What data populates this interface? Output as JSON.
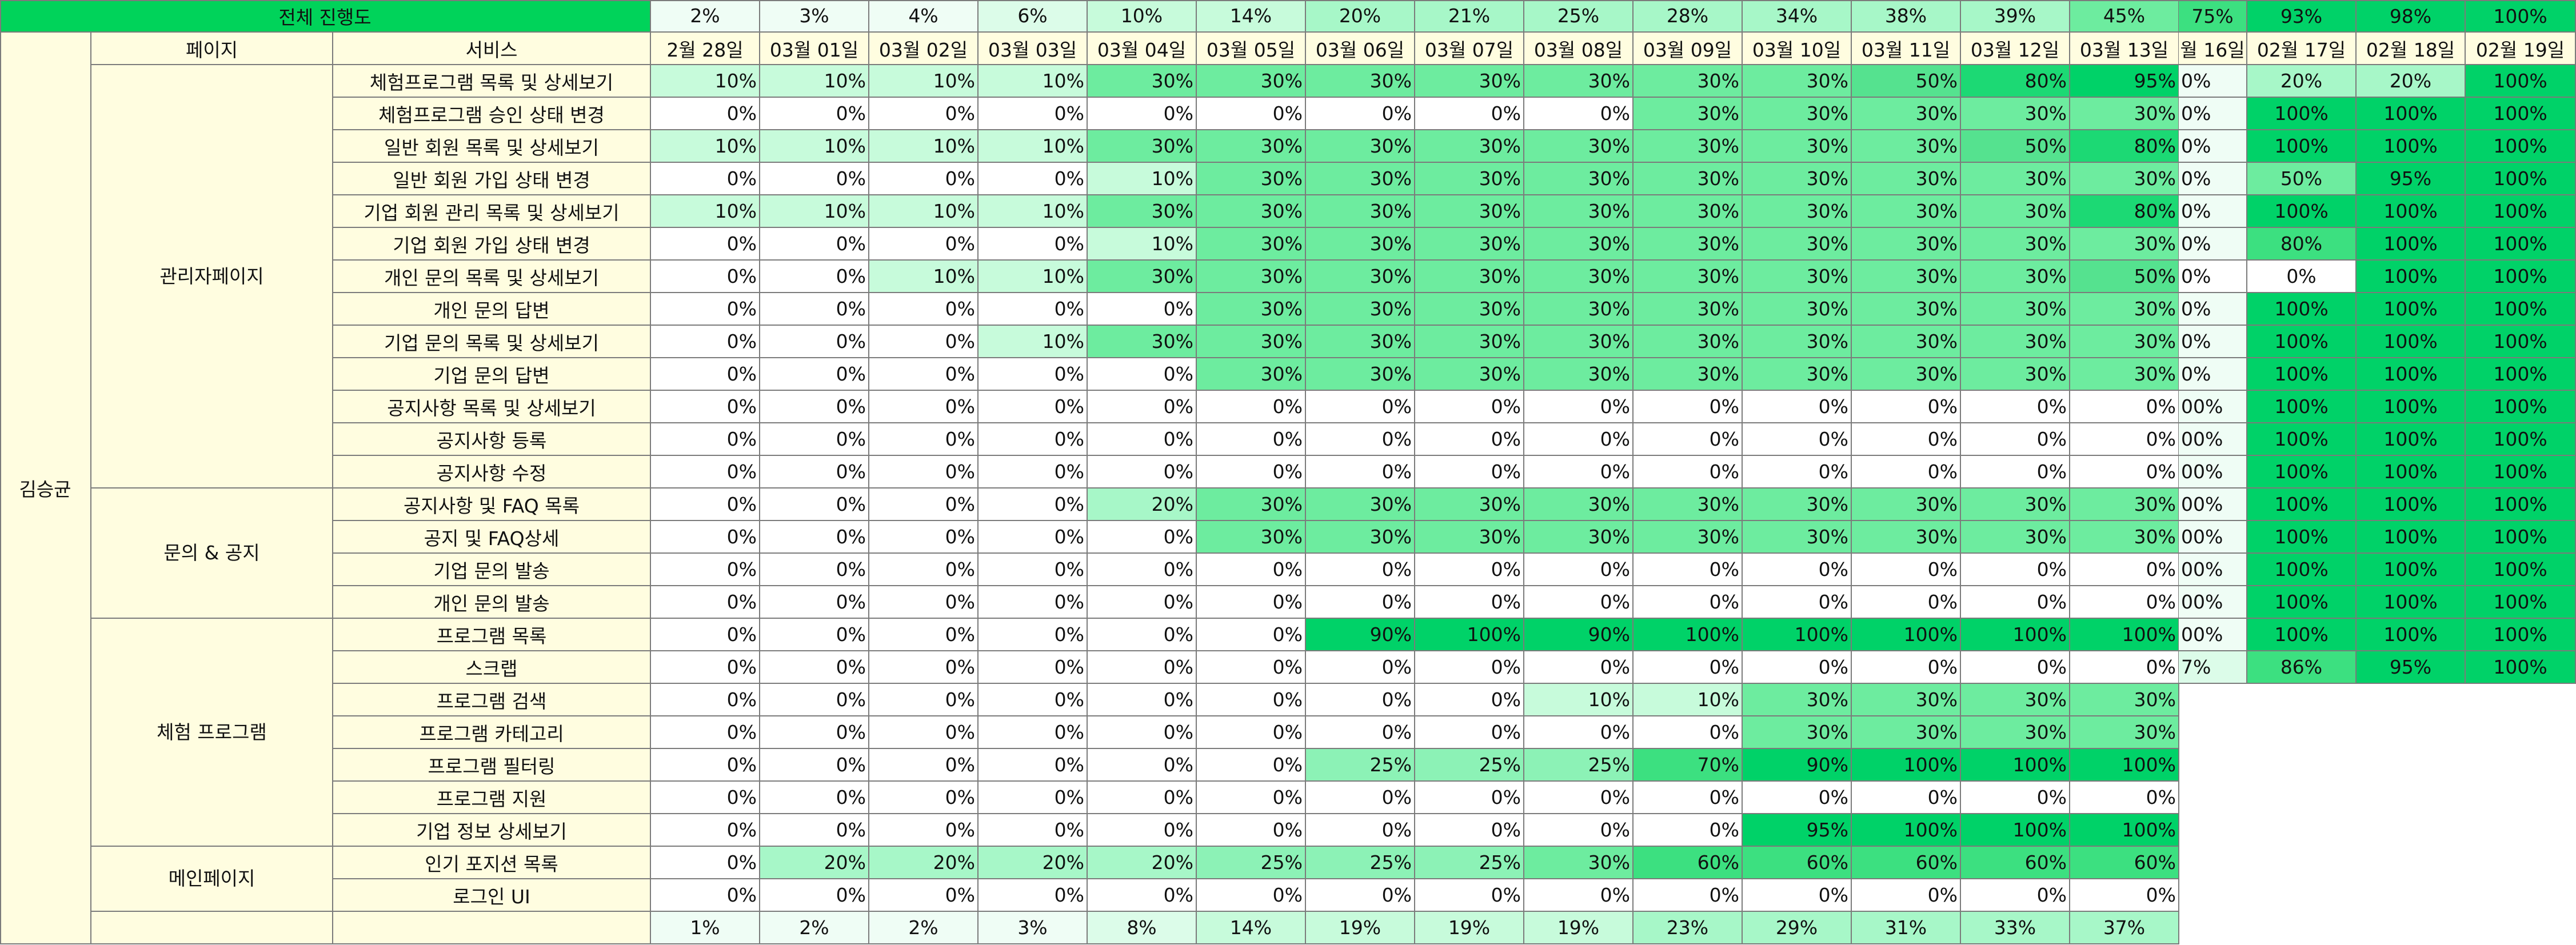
{
  "header": {
    "overall_label": "전체 진행도",
    "person_label": "김승균",
    "page_col": "페이지",
    "service_col": "서비스",
    "overall": [
      "2%",
      "3%",
      "4%",
      "6%",
      "10%",
      "14%",
      "20%",
      "21%",
      "25%",
      "28%",
      "34%",
      "38%",
      "39%",
      "45%"
    ],
    "dates": [
      "2월 28일",
      "03월 01일",
      "03월 02일",
      "03월 03일",
      "03월 04일",
      "03월 05일",
      "03월 06일",
      "03월 07일",
      "03월 08일",
      "03월 09일",
      "03월 10일",
      "03월 11일",
      "03월 12일",
      "03월 13일"
    ]
  },
  "groups": [
    {
      "label": "관리자\n페이지",
      "rows": 13
    },
    {
      "label": "문의 & 공지",
      "rows": 4
    },
    {
      "label": "체험 프로그램",
      "rows": 7
    },
    {
      "label": "메인페이지",
      "rows": 2
    }
  ],
  "rows": [
    {
      "service": "체험프로그램 목록 및 상세보기",
      "values": [
        10,
        10,
        10,
        10,
        30,
        30,
        30,
        30,
        30,
        30,
        30,
        50,
        80,
        95
      ]
    },
    {
      "service": "체험프로그램 승인 상태 변경",
      "values": [
        0,
        0,
        0,
        0,
        0,
        0,
        0,
        0,
        0,
        30,
        30,
        30,
        30,
        30
      ]
    },
    {
      "service": "일반 회원 목록 및 상세보기",
      "values": [
        10,
        10,
        10,
        10,
        30,
        30,
        30,
        30,
        30,
        30,
        30,
        30,
        50,
        80
      ]
    },
    {
      "service": "일반 회원 가입 상태 변경",
      "values": [
        0,
        0,
        0,
        0,
        10,
        30,
        30,
        30,
        30,
        30,
        30,
        30,
        30,
        30
      ]
    },
    {
      "service": "기업 회원 관리 목록 및 상세보기",
      "values": [
        10,
        10,
        10,
        10,
        30,
        30,
        30,
        30,
        30,
        30,
        30,
        30,
        30,
        80
      ]
    },
    {
      "service": "기업 회원 가입 상태 변경",
      "values": [
        0,
        0,
        0,
        0,
        10,
        30,
        30,
        30,
        30,
        30,
        30,
        30,
        30,
        30
      ]
    },
    {
      "service": "개인 문의 목록 및 상세보기",
      "values": [
        0,
        0,
        10,
        10,
        30,
        30,
        30,
        30,
        30,
        30,
        30,
        30,
        30,
        50
      ]
    },
    {
      "service": "개인 문의 답변",
      "values": [
        0,
        0,
        0,
        0,
        0,
        30,
        30,
        30,
        30,
        30,
        30,
        30,
        30,
        30
      ]
    },
    {
      "service": "기업 문의 목록 및 상세보기",
      "values": [
        0,
        0,
        0,
        10,
        30,
        30,
        30,
        30,
        30,
        30,
        30,
        30,
        30,
        30
      ]
    },
    {
      "service": "기업 문의 답변",
      "values": [
        0,
        0,
        0,
        0,
        0,
        30,
        30,
        30,
        30,
        30,
        30,
        30,
        30,
        30
      ]
    },
    {
      "service": "공지사항 목록 및 상세보기",
      "values": [
        0,
        0,
        0,
        0,
        0,
        0,
        0,
        0,
        0,
        0,
        0,
        0,
        0,
        0
      ]
    },
    {
      "service": "공지사항 등록",
      "values": [
        0,
        0,
        0,
        0,
        0,
        0,
        0,
        0,
        0,
        0,
        0,
        0,
        0,
        0
      ]
    },
    {
      "service": "공지사항 수정",
      "values": [
        0,
        0,
        0,
        0,
        0,
        0,
        0,
        0,
        0,
        0,
        0,
        0,
        0,
        0
      ]
    },
    {
      "service": "공지사항 및 FAQ 목록",
      "values": [
        0,
        0,
        0,
        0,
        20,
        30,
        30,
        30,
        30,
        30,
        30,
        30,
        30,
        30
      ]
    },
    {
      "service": "공지 및 FAQ상세",
      "values": [
        0,
        0,
        0,
        0,
        0,
        30,
        30,
        30,
        30,
        30,
        30,
        30,
        30,
        30
      ]
    },
    {
      "service": "기업 문의 발송",
      "values": [
        0,
        0,
        0,
        0,
        0,
        0,
        0,
        0,
        0,
        0,
        0,
        0,
        0,
        0
      ]
    },
    {
      "service": "개인 문의 발송",
      "values": [
        0,
        0,
        0,
        0,
        0,
        0,
        0,
        0,
        0,
        0,
        0,
        0,
        0,
        0
      ]
    },
    {
      "service": "프로그램 목록",
      "values": [
        0,
        0,
        0,
        0,
        0,
        0,
        90,
        100,
        90,
        100,
        100,
        100,
        100,
        100
      ]
    },
    {
      "service": "스크랩",
      "values": [
        0,
        0,
        0,
        0,
        0,
        0,
        0,
        0,
        0,
        0,
        0,
        0,
        0,
        0
      ]
    },
    {
      "service": "프로그램 검색",
      "values": [
        0,
        0,
        0,
        0,
        0,
        0,
        0,
        0,
        10,
        10,
        30,
        30,
        30,
        30
      ]
    },
    {
      "service": "프로그램 카테고리",
      "values": [
        0,
        0,
        0,
        0,
        0,
        0,
        0,
        0,
        0,
        0,
        30,
        30,
        30,
        30
      ]
    },
    {
      "service": "프로그램 필터링",
      "values": [
        0,
        0,
        0,
        0,
        0,
        0,
        25,
        25,
        25,
        70,
        90,
        100,
        100,
        100
      ]
    },
    {
      "service": "프로그램 지원",
      "values": [
        0,
        0,
        0,
        0,
        0,
        0,
        0,
        0,
        0,
        0,
        0,
        0,
        0,
        0
      ]
    },
    {
      "service": "기업 정보 상세보기",
      "values": [
        0,
        0,
        0,
        0,
        0,
        0,
        0,
        0,
        0,
        0,
        95,
        100,
        100,
        100
      ]
    },
    {
      "service": "인기 포지션 목록",
      "values": [
        0,
        20,
        20,
        20,
        20,
        25,
        25,
        25,
        30,
        60,
        60,
        60,
        60,
        60
      ]
    },
    {
      "service": "로그인 UI",
      "values": [
        0,
        0,
        0,
        0,
        0,
        0,
        0,
        0,
        0,
        0,
        0,
        0,
        0,
        0
      ]
    }
  ],
  "totals": [
    "1%",
    "2%",
    "2%",
    "3%",
    "8%",
    "14%",
    "19%",
    "19%",
    "19%",
    "23%",
    "29%",
    "31%",
    "33%",
    "37%"
  ],
  "ghost": {
    "overall": [
      "75%",
      "93%",
      "98%",
      "100%"
    ],
    "dates": [
      "월 16일",
      "02월 17일",
      "02월 18일",
      "02월 19일"
    ],
    "rows": [
      [
        "0%",
        "20%",
        "20%",
        "100%"
      ],
      [
        "0%",
        "100%",
        "100%",
        "100%"
      ],
      [
        "0%",
        "100%",
        "100%",
        "100%"
      ],
      [
        "0%",
        "50%",
        "95%",
        "100%"
      ],
      [
        "0%",
        "100%",
        "100%",
        "100%"
      ],
      [
        "0%",
        "80%",
        "100%",
        "100%"
      ],
      [
        "0%",
        "0%",
        "100%",
        "100%"
      ],
      [
        "0%",
        "100%",
        "100%",
        "100%"
      ],
      [
        "0%",
        "100%",
        "100%",
        "100%"
      ],
      [
        "0%",
        "100%",
        "100%",
        "100%"
      ],
      [
        "00%",
        "100%",
        "100%",
        "100%"
      ],
      [
        "00%",
        "100%",
        "100%",
        "100%"
      ],
      [
        "00%",
        "100%",
        "100%",
        "100%"
      ],
      [
        "00%",
        "100%",
        "100%",
        "100%"
      ],
      [
        "00%",
        "100%",
        "100%",
        "100%"
      ],
      [
        "00%",
        "100%",
        "100%",
        "100%"
      ],
      [
        "00%",
        "100%",
        "100%",
        "100%"
      ],
      [
        "00%",
        "100%",
        "100%",
        "100%"
      ],
      [
        "7%",
        "86%",
        "95%",
        "100%"
      ]
    ]
  },
  "colors": {
    "header_bg": "#fffde0",
    "top_bar": "#00d35a",
    "border": "#7b7b7b"
  }
}
